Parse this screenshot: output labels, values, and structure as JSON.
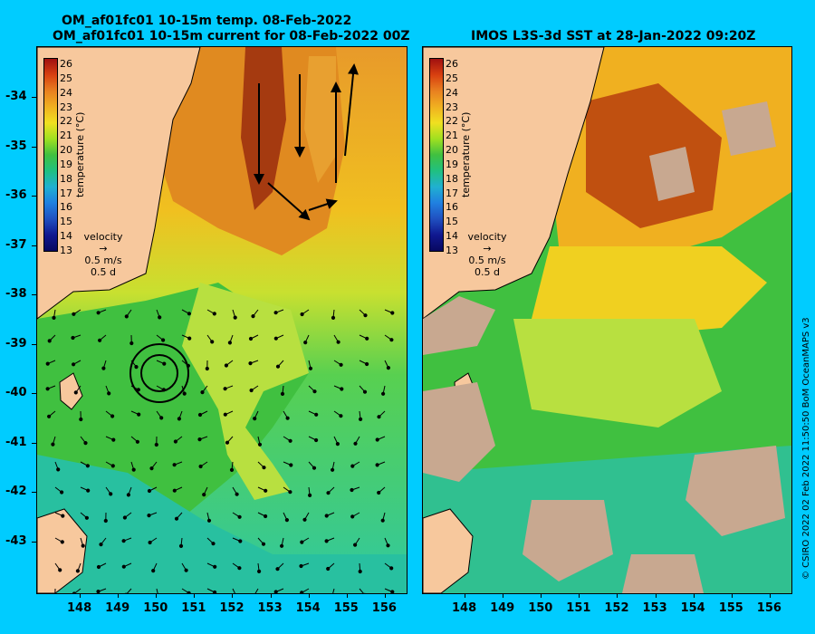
{
  "left_panel": {
    "title_line1": "OM_af01fc01 10-15m temp. 08-Feb-2022",
    "title_line2": "OM_af01fc01 10-15m current for 08-Feb-2022 00Z"
  },
  "right_panel": {
    "title": "IMOS L3S-3d SST at 28-Jan-2022 09:20Z"
  },
  "colorbar": {
    "ticks": [
      "26",
      "25",
      "24",
      "23",
      "22",
      "21",
      "20",
      "19",
      "18",
      "17",
      "16",
      "15",
      "14",
      "13"
    ],
    "label": "temperature (°C)"
  },
  "velocity_key": {
    "title": "velocity",
    "speed": "0.5 m/s",
    "duration": "0.5 d"
  },
  "lat_ticks": [
    "-34",
    "-35",
    "-36",
    "-37",
    "-38",
    "-39",
    "-40",
    "-41",
    "-42",
    "-43"
  ],
  "lon_ticks": [
    "148",
    "149",
    "150",
    "151",
    "152",
    "153",
    "154",
    "155",
    "156"
  ],
  "credit": "© CSIRO 2022   02 Feb 2022 11:50:50 BoM OceanMAPS v3",
  "colors": {
    "background": "#00ccff",
    "land": "#f7c89d",
    "cloud_mask": "#c8a890"
  }
}
